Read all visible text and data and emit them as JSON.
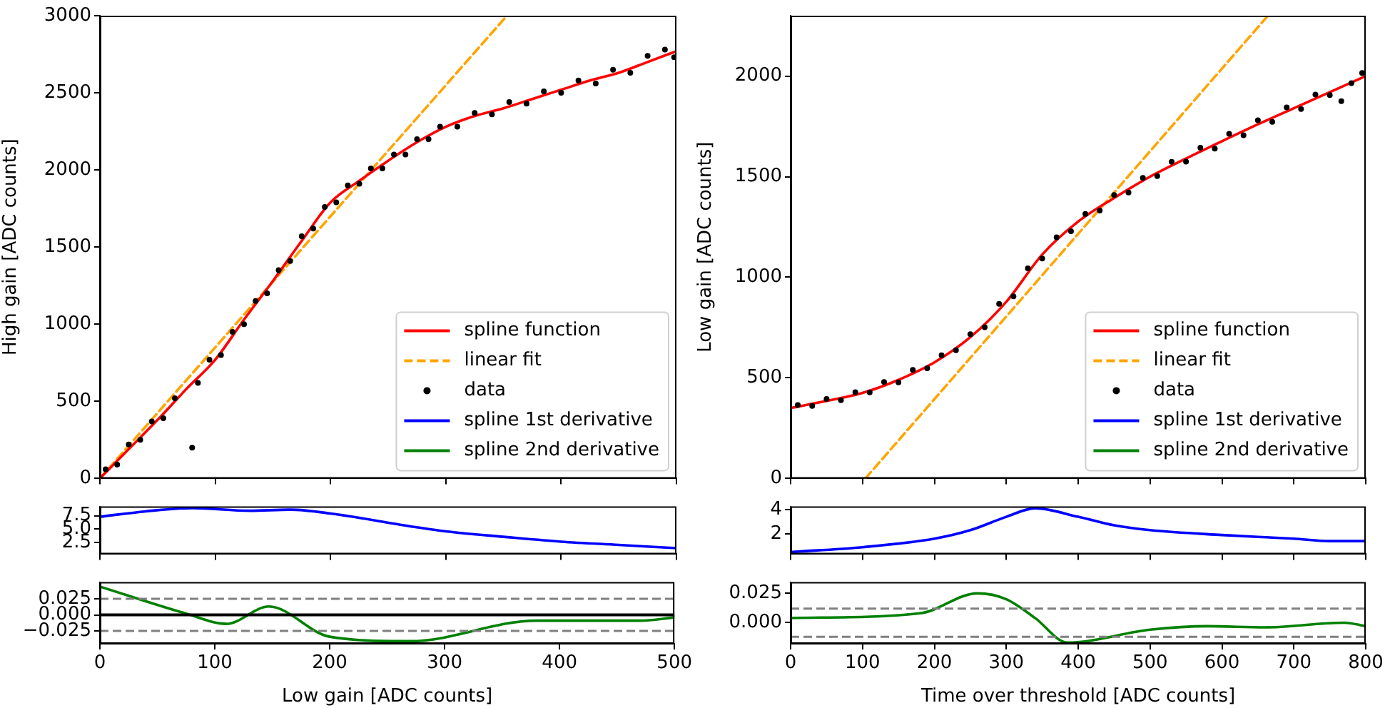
{
  "chart_data": [
    {
      "type": "line",
      "ylabel": "High gain [ADC counts]",
      "xlim": [
        0,
        500
      ],
      "xticks": [
        0,
        100,
        200,
        300,
        400,
        500
      ],
      "ylim": [
        0,
        3000
      ],
      "yticks": [
        0,
        500,
        1000,
        1500,
        2000,
        2500,
        3000
      ],
      "tick_labels": "y",
      "legend": "bottom right",
      "grid": false,
      "series": [
        {
          "name": "spline function",
          "color": "#ff0000",
          "line_style": "solid",
          "x": [
            0,
            25,
            50,
            75,
            100,
            125,
            150,
            175,
            200,
            225,
            250,
            275,
            300,
            325,
            350,
            375,
            400,
            425,
            450,
            475,
            500
          ],
          "values": [
            0,
            190,
            380,
            580,
            770,
            1030,
            1280,
            1540,
            1790,
            1930,
            2060,
            2180,
            2280,
            2350,
            2400,
            2460,
            2520,
            2580,
            2630,
            2700,
            2770
          ]
        },
        {
          "name": "linear fit",
          "color": "#ffa500",
          "line_style": "dashed",
          "x": [
            0,
            353
          ],
          "values": [
            0,
            3000
          ]
        },
        {
          "name": "data",
          "type": "scatter",
          "color": "#000000",
          "marker": "circle",
          "x": [
            5,
            15,
            25,
            35,
            45,
            55,
            65,
            80,
            85,
            95,
            105,
            115,
            125,
            135,
            145,
            155,
            165,
            175,
            185,
            195,
            205,
            215,
            225,
            235,
            245,
            255,
            265,
            275,
            285,
            295,
            310,
            325,
            340,
            355,
            370,
            385,
            400,
            415,
            430,
            445,
            460,
            475,
            490,
            498
          ],
          "values": [
            60,
            90,
            220,
            250,
            370,
            390,
            520,
            200,
            620,
            770,
            800,
            950,
            1000,
            1150,
            1200,
            1350,
            1410,
            1570,
            1620,
            1760,
            1790,
            1900,
            1910,
            2010,
            2010,
            2100,
            2100,
            2200,
            2200,
            2280,
            2280,
            2370,
            2360,
            2440,
            2430,
            2510,
            2500,
            2580,
            2560,
            2650,
            2630,
            2740,
            2780,
            2730
          ]
        }
      ]
    },
    {
      "type": "line",
      "xlim": [
        0,
        500
      ],
      "xticks": [
        0,
        100,
        200,
        300,
        400,
        500
      ],
      "ylim": [
        0.4,
        9.2
      ],
      "yticks": [
        {
          "value": 2.5,
          "label": "2.5"
        },
        {
          "value": 5,
          "label": "5.0"
        },
        {
          "value": 7.5,
          "label": "7.5"
        }
      ],
      "tick_labels": "y",
      "grid": false,
      "series": [
        {
          "name": "spline 1st derivative",
          "color": "#0000ff",
          "line_style": "solid",
          "x": [
            0,
            40,
            80,
            130,
            165,
            200,
            270,
            300,
            350,
            400,
            450,
            500
          ],
          "values": [
            7.3,
            8.3,
            8.9,
            8.4,
            8.6,
            7.9,
            5.5,
            4.6,
            3.6,
            2.7,
            2.1,
            1.5
          ]
        }
      ]
    },
    {
      "type": "line",
      "xlabel": "Low gain [ADC counts]",
      "xlim": [
        0,
        500
      ],
      "xticks": [
        0,
        100,
        200,
        300,
        400,
        500
      ],
      "ylim": [
        -0.045,
        0.051
      ],
      "yticks": [
        {
          "value": -0.025,
          "label": "−0.025"
        },
        {
          "value": 0,
          "label": "0.000"
        },
        {
          "value": 0.025,
          "label": "0.025"
        }
      ],
      "grid": false,
      "ref_lines": [
        {
          "axis": "y",
          "value": 0.025,
          "color": "#808080",
          "line_style": "dashed"
        },
        {
          "axis": "y",
          "value": -0.025,
          "color": "#808080",
          "line_style": "dashed"
        },
        {
          "axis": "y",
          "value": 0,
          "color": "#000000",
          "line_style": "solid"
        }
      ],
      "series": [
        {
          "name": "spline 2nd derivative",
          "color": "#008000",
          "line_style": "solid",
          "x": [
            0,
            75,
            110,
            147,
            200,
            270,
            380,
            470,
            500
          ],
          "values": [
            0.044,
            0.002,
            -0.014,
            0.013,
            -0.034,
            -0.041,
            -0.009,
            -0.009,
            -0.004
          ]
        }
      ]
    },
    {
      "type": "line",
      "ylabel": "Low gain [ADC counts]",
      "xlim": [
        0,
        800
      ],
      "xticks": [
        0,
        100,
        200,
        300,
        400,
        500,
        600,
        700,
        800
      ],
      "ylim": [
        0,
        2300
      ],
      "yticks": [
        0,
        500,
        1000,
        1500,
        2000
      ],
      "tick_labels": "y",
      "legend": "bottom right",
      "grid": false,
      "series": [
        {
          "name": "spline function",
          "color": "#ff0000",
          "line_style": "solid",
          "x": [
            0,
            50,
            100,
            150,
            200,
            250,
            300,
            350,
            400,
            450,
            500,
            550,
            600,
            650,
            700,
            750,
            800
          ],
          "values": [
            350,
            385,
            425,
            490,
            577,
            702,
            878,
            1113,
            1277,
            1394,
            1500,
            1590,
            1676,
            1760,
            1840,
            1920,
            2000
          ]
        },
        {
          "name": "linear fit",
          "color": "#ffa500",
          "line_style": "dashed",
          "x": [
            104,
            664
          ],
          "values": [
            0,
            2300
          ]
        },
        {
          "name": "data",
          "type": "scatter",
          "color": "#000000",
          "marker": "circle",
          "x": [
            10,
            30,
            50,
            70,
            90,
            110,
            130,
            150,
            170,
            190,
            210,
            230,
            250,
            270,
            290,
            310,
            330,
            350,
            370,
            390,
            410,
            430,
            450,
            470,
            490,
            510,
            530,
            550,
            570,
            590,
            610,
            630,
            650,
            670,
            690,
            710,
            730,
            750,
            766,
            780,
            795
          ],
          "values": [
            365,
            361,
            395,
            389,
            429,
            428,
            479,
            478,
            540,
            548,
            612,
            637,
            717,
            752,
            868,
            905,
            1044,
            1093,
            1199,
            1229,
            1315,
            1332,
            1409,
            1421,
            1494,
            1503,
            1574,
            1575,
            1644,
            1639,
            1713,
            1706,
            1780,
            1772,
            1844,
            1836,
            1908,
            1905,
            1875,
            1965,
            2015
          ]
        }
      ]
    },
    {
      "type": "line",
      "xlim": [
        0,
        800
      ],
      "xticks": [
        0,
        100,
        200,
        300,
        400,
        500,
        600,
        700,
        800
      ],
      "ylim": [
        0.33,
        4.25
      ],
      "yticks": [
        2,
        4
      ],
      "tick_labels": "y",
      "grid": false,
      "series": [
        {
          "name": "spline 1st derivative",
          "color": "#0000ff",
          "line_style": "solid",
          "x": [
            0,
            100,
            200,
            250,
            300,
            340,
            400,
            450,
            500,
            600,
            700,
            750,
            800
          ],
          "values": [
            0.5,
            0.9,
            1.6,
            2.3,
            3.4,
            4.1,
            3.4,
            2.7,
            2.3,
            1.9,
            1.6,
            1.4,
            1.4
          ]
        }
      ]
    },
    {
      "type": "line",
      "xlabel": "Time over threshold [ADC counts]",
      "xlim": [
        0,
        800
      ],
      "xticks": [
        0,
        100,
        200,
        300,
        400,
        500,
        600,
        700,
        800
      ],
      "ylim": [
        -0.018,
        0.0346
      ],
      "yticks": [
        {
          "value": 0,
          "label": "0.000"
        },
        {
          "value": 0.025,
          "label": "0.025"
        }
      ],
      "grid": false,
      "ref_lines": [
        {
          "axis": "y",
          "value": 0.012,
          "color": "#808080",
          "line_style": "dashed"
        },
        {
          "axis": "y",
          "value": -0.012,
          "color": "#808080",
          "line_style": "dashed"
        }
      ],
      "series": [
        {
          "name": "spline 2nd derivative",
          "color": "#008000",
          "line_style": "solid",
          "x": [
            0,
            180,
            260,
            300,
            340,
            385,
            500,
            580,
            660,
            770,
            800
          ],
          "values": [
            0.004,
            0.008,
            0.025,
            0.02,
            0.004,
            -0.017,
            -0.006,
            -0.003,
            -0.004,
            0,
            -0.003
          ]
        }
      ]
    }
  ]
}
